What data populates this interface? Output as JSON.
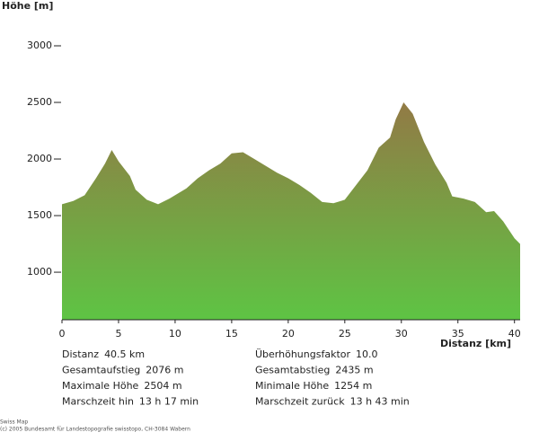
{
  "chart_data": {
    "type": "area",
    "y_label": "Höhe [m]",
    "x_label": "Distanz [km]",
    "x": [
      0,
      1,
      2,
      3,
      3.8,
      4.4,
      5,
      6,
      6.5,
      7.5,
      8.5,
      9.5,
      11,
      12,
      13,
      14,
      15,
      16,
      17,
      18,
      19,
      20,
      21,
      22,
      23,
      24,
      25,
      26,
      27,
      28,
      29,
      29.5,
      30.2,
      31,
      32,
      33,
      34,
      34.5,
      35.5,
      36.5,
      37.5,
      38.2,
      39,
      40,
      40.5
    ],
    "values": [
      1600,
      1630,
      1680,
      1830,
      1960,
      2080,
      1980,
      1850,
      1730,
      1640,
      1600,
      1650,
      1740,
      1830,
      1900,
      1960,
      2050,
      2060,
      2000,
      1940,
      1880,
      1830,
      1770,
      1700,
      1620,
      1610,
      1640,
      1770,
      1900,
      2100,
      2190,
      2350,
      2500,
      2400,
      2150,
      1950,
      1790,
      1670,
      1650,
      1620,
      1530,
      1540,
      1450,
      1300,
      1250
    ],
    "color_top": "#927a45",
    "color_bottom": "#5ec444",
    "xlim": [
      0,
      40.5
    ],
    "xticks": [
      0,
      5,
      10,
      15,
      20,
      25,
      30,
      35,
      40
    ],
    "ylim": [
      580,
      3000
    ],
    "yticks": [
      1000,
      1500,
      2000,
      2500,
      3000
    ],
    "stats": [
      {
        "label": "Distanz",
        "value": "40.5 km"
      },
      {
        "label": "Überhöhungsfaktor",
        "value": "10.0"
      },
      {
        "label": "Gesamtaufstieg",
        "value": "2076 m"
      },
      {
        "label": "Gesamtabstieg",
        "value": "2435 m"
      },
      {
        "label": "Maximale Höhe",
        "value": "2504 m"
      },
      {
        "label": "Minimale Höhe",
        "value": "1254 m"
      },
      {
        "label": "Marschzeit hin",
        "value": "13 h 17 min"
      },
      {
        "label": "Marschzeit zurück",
        "value": "13 h 43 min"
      }
    ],
    "footer": [
      "Swiss Map",
      "(c) 2005 Bundesamt für Landestopografie swisstopo, CH-3084 Wabern"
    ]
  }
}
